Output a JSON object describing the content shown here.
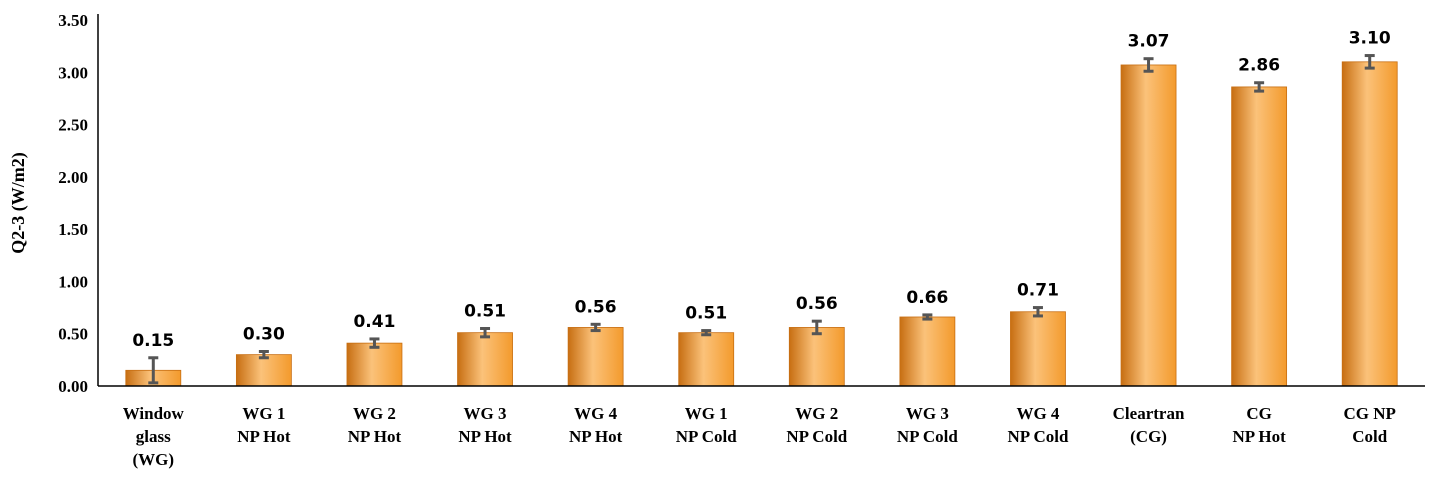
{
  "chart_data": {
    "type": "bar",
    "title": "",
    "xlabel": "",
    "ylabel": "Q2-3 (W/m2)",
    "ylim": [
      0,
      3.5
    ],
    "yticks": [
      "0.00",
      "0.50",
      "1.00",
      "1.50",
      "2.00",
      "2.50",
      "3.00",
      "3.50"
    ],
    "grid": false,
    "legend": "none",
    "categories": [
      [
        "Window",
        "glass",
        "(WG)"
      ],
      [
        "WG 1",
        "NP Hot"
      ],
      [
        "WG 2",
        "NP Hot"
      ],
      [
        "WG 3",
        "NP Hot"
      ],
      [
        "WG 4",
        "NP Hot"
      ],
      [
        "WG 1",
        "NP Cold"
      ],
      [
        "WG 2",
        "NP Cold"
      ],
      [
        "WG 3",
        "NP Cold"
      ],
      [
        "WG 4",
        "NP Cold"
      ],
      [
        "Cleartran",
        "(CG)"
      ],
      [
        "CG",
        "NP Hot"
      ],
      [
        "CG NP",
        "Cold"
      ]
    ],
    "values": [
      0.15,
      0.3,
      0.41,
      0.51,
      0.56,
      0.51,
      0.56,
      0.66,
      0.71,
      3.07,
      2.86,
      3.1
    ],
    "value_labels": [
      "0.15",
      "0.30",
      "0.41",
      "0.51",
      "0.56",
      "0.51",
      "0.56",
      "0.66",
      "0.71",
      "3.07",
      "2.86",
      "3.10"
    ],
    "errors": [
      0.12,
      0.03,
      0.04,
      0.04,
      0.03,
      0.02,
      0.06,
      0.02,
      0.04,
      0.06,
      0.04,
      0.06
    ],
    "bar_color": "#F39A2C",
    "bar_color_light": "#FBC27A",
    "bar_color_dark": "#C76E12",
    "error_color": "#555555"
  }
}
